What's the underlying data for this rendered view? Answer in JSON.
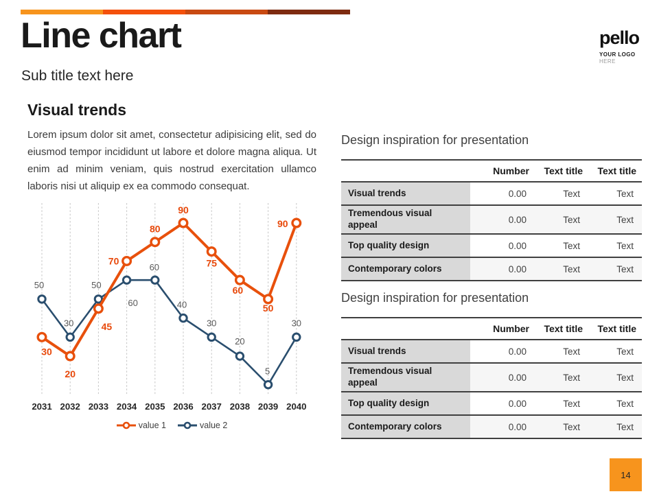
{
  "slide": {
    "title": "Line chart",
    "subtitle": "Sub title text here",
    "page_number": "14",
    "accent_bar_colors": [
      "#F7941D",
      "#F4510C",
      "#C94A12",
      "#7E2B10"
    ],
    "page_box_color": "#F7941D"
  },
  "logo": {
    "brand": "pello",
    "line1": "YOUR LOGO",
    "line2": "HERE"
  },
  "left": {
    "heading": "Visual trends",
    "body": "Lorem ipsum dolor sit amet, consectetur adipisicing elit, sed do eiusmod tempor incididunt ut labore et dolore magna aliqua. Ut enim ad minim veniam, quis nostrud exercitation ullamco laboris nisi ut aliquip ex ea commodo consequat."
  },
  "chart_data": {
    "type": "line",
    "title": "",
    "xlabel": "",
    "ylabel": "",
    "ylim": [
      0,
      100
    ],
    "grid": "vertical-dashed",
    "grid_color": "#c4c4c4",
    "tick_color": "#262626",
    "legend_position": "bottom",
    "categories": [
      "2031",
      "2032",
      "2033",
      "2034",
      "2035",
      "2036",
      "2037",
      "2038",
      "2039",
      "2040"
    ],
    "series": [
      {
        "name": "value 1",
        "values": [
          30,
          20,
          45,
          70,
          80,
          90,
          75,
          60,
          50,
          90
        ],
        "color": "#E8500C",
        "label_color": "#E8490B",
        "label_offsets": [
          [
            7,
            26
          ],
          [
            0,
            31
          ],
          [
            12,
            31
          ],
          [
            -19,
            5
          ],
          [
            0,
            -14
          ],
          [
            0,
            -14
          ],
          [
            0,
            22
          ],
          [
            -3,
            20
          ],
          [
            0,
            18
          ],
          [
            -20,
            6
          ]
        ]
      },
      {
        "name": "value 2",
        "values": [
          50,
          30,
          50,
          60,
          60,
          40,
          30,
          20,
          5,
          30
        ],
        "color": "#2A4E6E",
        "label_color": "#595959",
        "label_offsets": [
          [
            -4,
            -16
          ],
          [
            -2,
            -16
          ],
          [
            -3,
            -16
          ],
          [
            9,
            38
          ],
          [
            -1,
            -14
          ],
          [
            -2,
            -15
          ],
          [
            0,
            -16
          ],
          [
            0,
            -17
          ],
          [
            -1,
            -15
          ],
          [
            0,
            -16
          ]
        ]
      }
    ]
  },
  "right": {
    "tables": [
      {
        "title": "Design inspiration for presentation",
        "headers": [
          "",
          "Number",
          "Text title",
          "Text title"
        ],
        "rows": [
          {
            "label": "Visual trends",
            "number": "0.00",
            "text1": "Text",
            "text2": "Text"
          },
          {
            "label": "Tremendous visual appeal",
            "number": "0.00",
            "text1": "Text",
            "text2": "Text"
          },
          {
            "label": "Top quality design",
            "number": "0.00",
            "text1": "Text",
            "text2": "Text"
          },
          {
            "label": "Contemporary colors",
            "number": "0.00",
            "text1": "Text",
            "text2": "Text"
          }
        ]
      },
      {
        "title": "Design inspiration for presentation",
        "headers": [
          "",
          "Number",
          "Text title",
          "Text title"
        ],
        "rows": [
          {
            "label": "Visual trends",
            "number": "0.00",
            "text1": "Text",
            "text2": "Text"
          },
          {
            "label": "Tremendous visual appeal",
            "number": "0.00",
            "text1": "Text",
            "text2": "Text"
          },
          {
            "label": "Top quality design",
            "number": "0.00",
            "text1": "Text",
            "text2": "Text"
          },
          {
            "label": "Contemporary colors",
            "number": "0.00",
            "text1": "Text",
            "text2": "Text"
          }
        ]
      }
    ]
  }
}
